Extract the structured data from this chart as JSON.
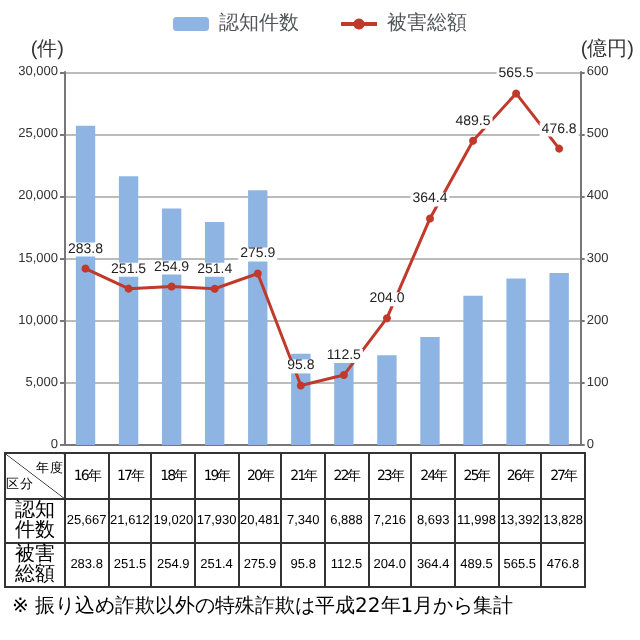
{
  "chart_data": {
    "type": "bar",
    "xlabel": "年度",
    "ylabel": "(件)",
    "y2label": "(億円)",
    "categories": [
      "16年",
      "17年",
      "18年",
      "19年",
      "20年",
      "21年",
      "22年",
      "23年",
      "24年",
      "25年",
      "26年",
      "27年"
    ],
    "series": [
      {
        "name": "認知件数",
        "color": "#8db4e2",
        "values": [
          25667,
          21612,
          19020,
          17930,
          20481,
          7340,
          6888,
          7216,
          8693,
          11998,
          13392,
          13828
        ],
        "value_labels": [
          "25,667",
          "21,612",
          "19,020",
          "17,930",
          "20,481",
          "7,340",
          "6,888",
          "7,216",
          "8,693",
          "11,998",
          "13,392",
          "13,828"
        ]
      },
      {
        "name": "被害総額",
        "type": "line",
        "axis": "y2",
        "color": "#c0392b",
        "marker": "circle",
        "values": [
          283.8,
          251.5,
          254.9,
          251.4,
          275.9,
          95.8,
          112.5,
          204.0,
          364.4,
          489.5,
          565.5,
          476.8
        ],
        "value_labels": [
          "283.8",
          "251.5",
          "254.9",
          "251.4",
          "275.9",
          "95.8",
          "112.5",
          "204.0",
          "364.4",
          "489.5",
          "565.5",
          "476.8"
        ]
      }
    ],
    "ylim": [
      0,
      30000
    ],
    "yticks": [
      0,
      {
        "value": 5000,
        "label": "5,000"
      },
      {
        "value": 10000,
        "label": "10,000"
      },
      {
        "value": 15000,
        "label": "15,000"
      },
      {
        "value": 20000,
        "label": "20,000"
      },
      {
        "value": 25000,
        "label": "25,000"
      },
      {
        "value": 30000,
        "label": "30,000"
      }
    ],
    "y2lim": [
      0,
      600
    ],
    "y2ticks": [
      0,
      100,
      200,
      300,
      400,
      500,
      600
    ],
    "grid": "y",
    "legend": "top",
    "annotations": [
      "※ 振り込め詐欺以外の特殊詐欺は平成22年1月から集計",
      "区分"
    ]
  }
}
